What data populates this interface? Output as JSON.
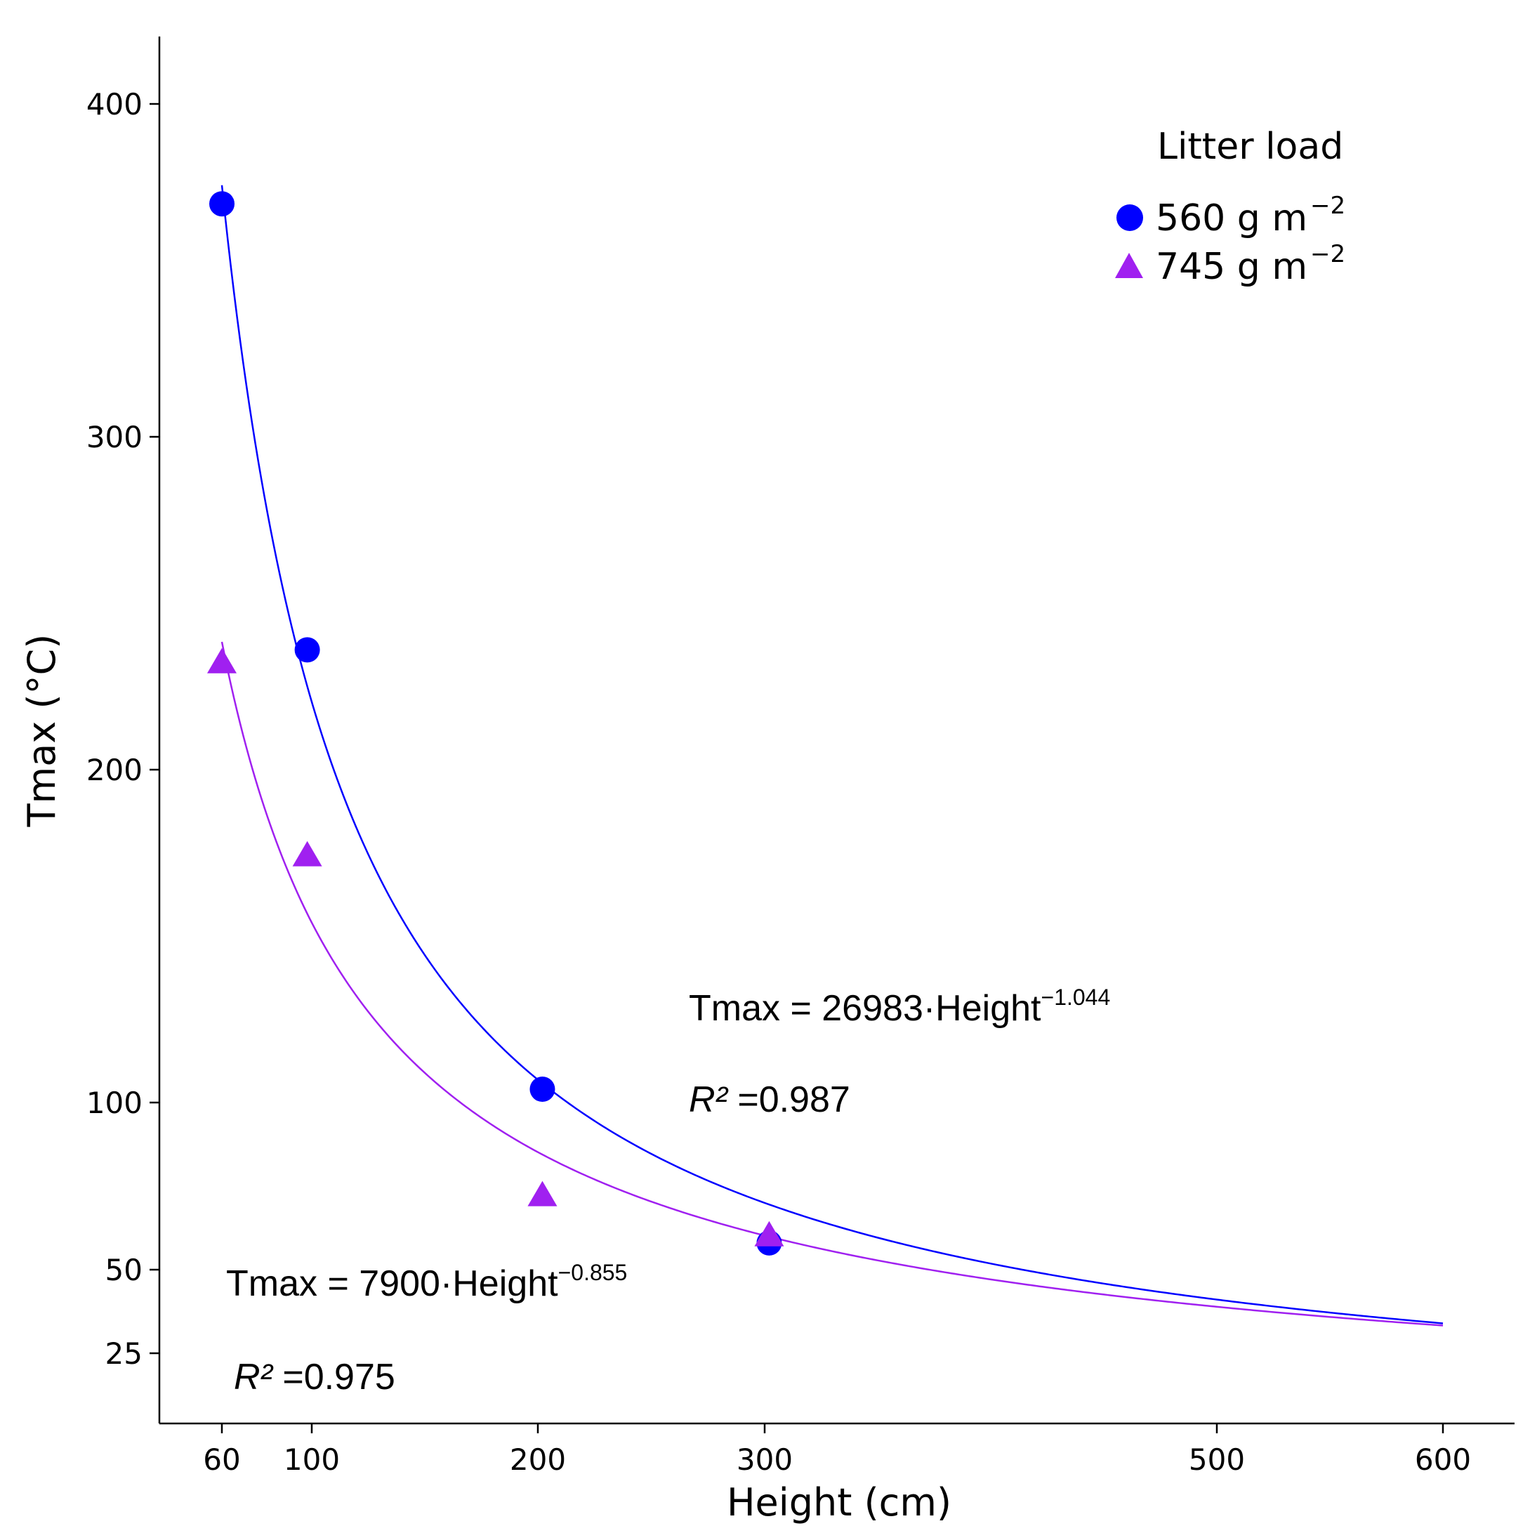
{
  "chart_data": {
    "type": "scatter",
    "xlabel": "Height (cm)",
    "ylabel": "Tmax (°C)",
    "x_ticks": [
      60,
      100,
      200,
      300,
      500,
      600
    ],
    "y_ticks": [
      25,
      50,
      100,
      200,
      300,
      400
    ],
    "x_tick_labels": [
      "60",
      "100",
      "200",
      "300",
      "500",
      "600"
    ],
    "y_tick_labels": [
      "25",
      "50",
      "100",
      "200",
      "300",
      "400"
    ],
    "grid": false,
    "legend": {
      "title": "Litter load",
      "position": "top-right",
      "entries": [
        {
          "label": "560 g m",
          "sup": "−2"
        },
        {
          "label": "745 g m",
          "sup": "−2"
        }
      ]
    },
    "series": [
      {
        "name": "560 g m−2",
        "marker": "circle",
        "color": "#0000ff",
        "x": [
          60,
          98,
          202,
          302
        ],
        "y": [
          370,
          236,
          104,
          58
        ],
        "fit": {
          "a": 26983,
          "b": -1.044,
          "x_range": [
            60,
            600
          ]
        },
        "equation": {
          "main": "Tmax = 26983·Height",
          "exponent": "−1.044",
          "r2_label": "R²",
          "r2_value": " =0.987"
        }
      },
      {
        "name": "745 g m−2",
        "marker": "triangle",
        "color": "#a020f0",
        "x": [
          60,
          98,
          202,
          302
        ],
        "y": [
          232,
          174,
          72,
          60
        ],
        "fit": {
          "a": 7900,
          "b": -0.855,
          "x_range": [
            60,
            600
          ]
        },
        "equation": {
          "main": "Tmax = 7900·Height",
          "exponent": "−0.855",
          "r2_label": "R²",
          "r2_value": " =0.975"
        }
      }
    ]
  }
}
